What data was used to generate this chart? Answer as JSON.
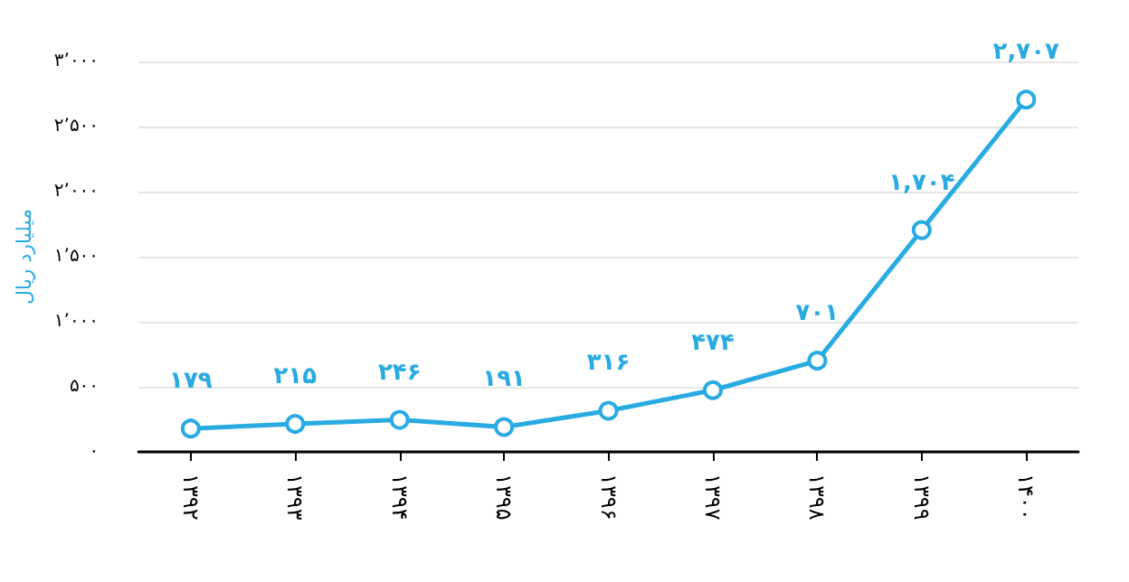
{
  "chart_data": {
    "type": "line",
    "ylabel": "میلیارد ریال",
    "categories": [
      "۱۳۹۲",
      "۱۳۹۳",
      "۱۳۹۴",
      "۱۳۹۵",
      "۱۳۹۶",
      "۱۳۹۷",
      "۱۳۹۸",
      "۱۳۹۹",
      "۱۴۰۰"
    ],
    "series": [
      {
        "color": "#29abe2",
        "values": [
          179,
          215,
          246,
          191,
          316,
          474,
          701,
          1704,
          2707
        ],
        "value_labels": [
          "۱۷۹",
          "۲۱۵",
          "۲۴۶",
          "۱۹۱",
          "۳۱۶",
          "۴۷۴",
          "۷۰۱",
          "۱,۷۰۴",
          "۲,۷۰۷"
        ]
      }
    ],
    "ylim": [
      0,
      3000
    ],
    "yticks": [
      {
        "value": 0,
        "label": "۰"
      },
      {
        "value": 500,
        "label": "۵۰۰"
      },
      {
        "value": 1000,
        "label": "۱٬۰۰۰"
      },
      {
        "value": 1500,
        "label": "۱٬۵۰۰"
      },
      {
        "value": 2000,
        "label": "۲٬۰۰۰"
      },
      {
        "value": 2500,
        "label": "۲٬۵۰۰"
      },
      {
        "value": 3000,
        "label": "۳٬۰۰۰"
      }
    ],
    "grid": "y",
    "marker": "circle",
    "line_style": "solid"
  }
}
